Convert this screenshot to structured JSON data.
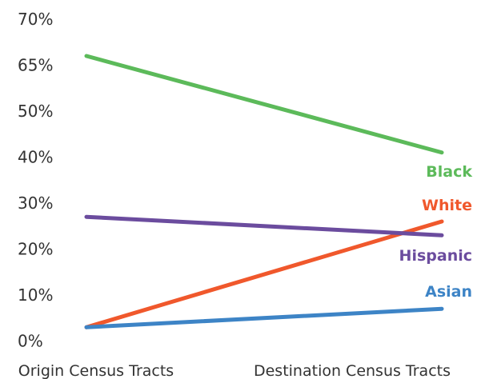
{
  "chart_data": {
    "type": "line",
    "categories": [
      "Origin Census Tracts",
      "Destination Census Tracts"
    ],
    "y_ticks": [
      {
        "label": "70%",
        "value": 70
      },
      {
        "label": "65%",
        "value": 65
      },
      {
        "label": "50%",
        "value": 50
      },
      {
        "label": "40%",
        "value": 40
      },
      {
        "label": "30%",
        "value": 30
      },
      {
        "label": "20%",
        "value": 20
      },
      {
        "label": "10%",
        "value": 10
      },
      {
        "label": "0%",
        "value": 0
      }
    ],
    "series": [
      {
        "name": "Black",
        "values": [
          66,
          41
        ],
        "color": "#5cba5a"
      },
      {
        "name": "White",
        "values": [
          3,
          26
        ],
        "color": "#f0582c"
      },
      {
        "name": "Hispanic",
        "values": [
          27,
          23
        ],
        "color": "#6b4c9e"
      },
      {
        "name": "Asian",
        "values": [
          3,
          7
        ],
        "color": "#3d84c6"
      }
    ],
    "grid": false,
    "legend": "inline-right"
  }
}
